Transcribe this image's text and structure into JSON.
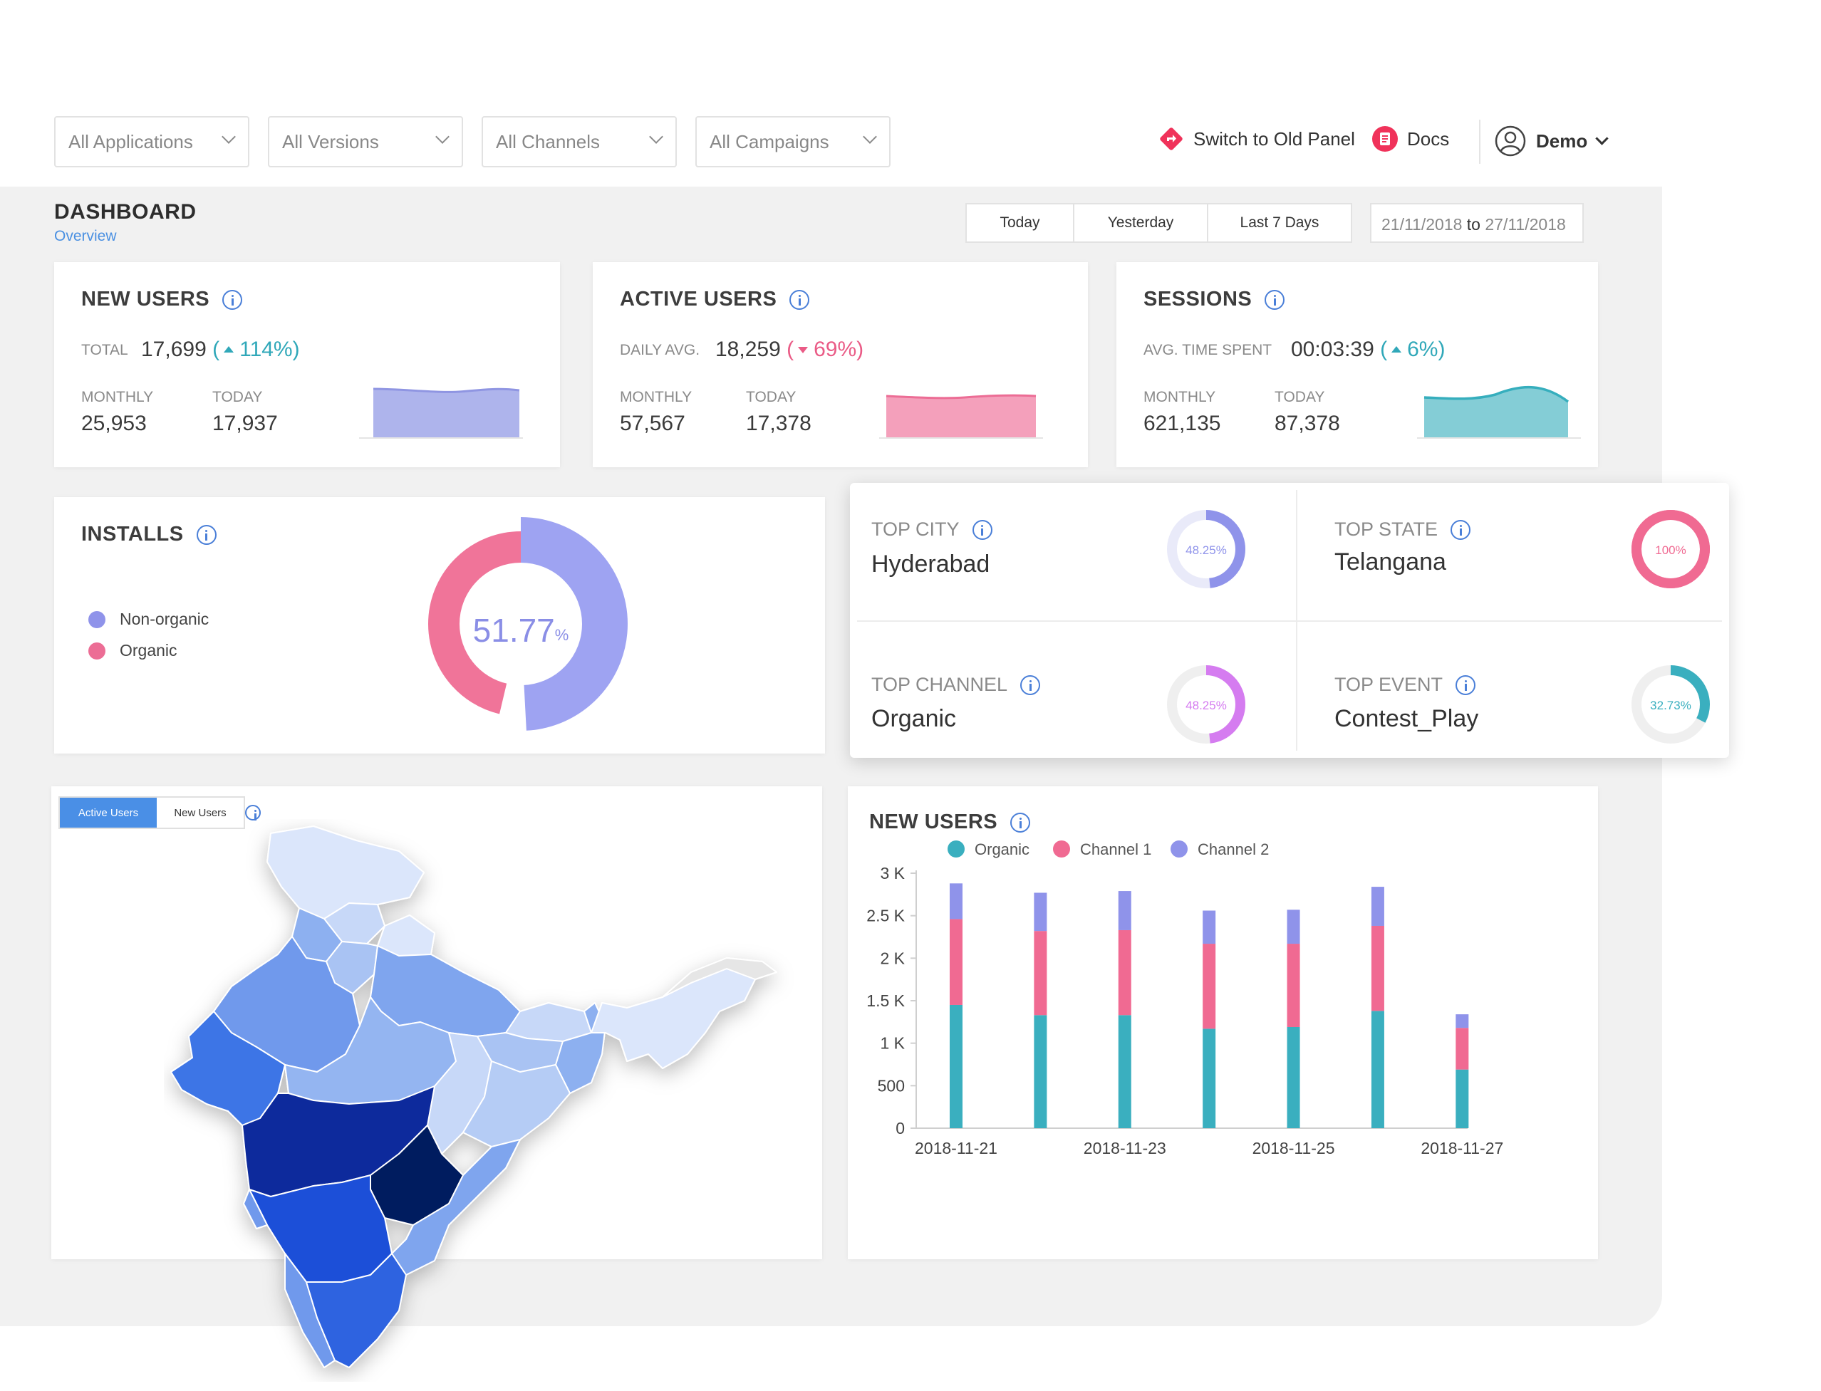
{
  "filters": [
    {
      "label": "All Applications"
    },
    {
      "label": "All Versions"
    },
    {
      "label": "All Channels"
    },
    {
      "label": "All Campaigns"
    }
  ],
  "topbar": {
    "switch_label": "Switch to Old Panel",
    "docs_label": "Docs",
    "user_name": "Demo"
  },
  "header": {
    "title": "DASHBOARD",
    "subtitle": "Overview",
    "ranges": [
      "Today",
      "Yesterday",
      "Last 7 Days"
    ],
    "date_from": "21/11/2018",
    "date_sep": "to",
    "date_to": "27/11/2018"
  },
  "stats": {
    "new_users": {
      "title": "NEW USERS",
      "main_label": "TOTAL",
      "main_value": "17,699",
      "change": "114%",
      "monthly_label": "MONTHLY",
      "monthly_value": "25,953",
      "today_label": "TODAY",
      "today_value": "17,937",
      "color": "#a9b1ec"
    },
    "active_users": {
      "title": "ACTIVE USERS",
      "main_label": "DAILY AVG.",
      "main_value": "18,259",
      "change": "69%",
      "monthly_label": "MONTHLY",
      "monthly_value": "57,567",
      "today_label": "TODAY",
      "today_value": "17,378",
      "color": "#f39bb8"
    },
    "sessions": {
      "title": "SESSIONS",
      "main_label": "AVG. TIME SPENT",
      "main_value": "00:03:39",
      "change": "6%",
      "monthly_label": "MONTHLY",
      "monthly_value": "621,135",
      "today_label": "TODAY",
      "today_value": "87,378",
      "color": "#7ecad3"
    }
  },
  "installs": {
    "title": "INSTALLS",
    "center_value": "51.77",
    "center_unit": "%",
    "legend": [
      {
        "name": "Non-organic",
        "color": "#9ea3f2",
        "share": 0.5177
      },
      {
        "name": "Organic",
        "color": "#f07499",
        "share": 0.4823
      }
    ]
  },
  "tops": [
    {
      "label": "TOP CITY",
      "value": "Hyderabad",
      "pct": "48.25%",
      "fraction": 0.4825,
      "color": "#8f93ea",
      "track": "#e9eaf9"
    },
    {
      "label": "TOP STATE",
      "value": "Telangana",
      "pct": "100%",
      "fraction": 1.0,
      "color": "#f06a92",
      "track": "#f06a92"
    },
    {
      "label": "TOP CHANNEL",
      "value": "Organic",
      "pct": "48.25%",
      "fraction": 0.4825,
      "color": "#d57cf0",
      "track": "#efefef"
    },
    {
      "label": "TOP EVENT",
      "value": "Contest_Play",
      "pct": "32.73%",
      "fraction": 0.3273,
      "color": "#3aafbf",
      "track": "#efefef"
    }
  ],
  "map_panel": {
    "tabs": [
      "Active Users",
      "New Users"
    ],
    "active_tab": "Active Users"
  },
  "chart_panel": {
    "title": "NEW USERS"
  },
  "chart_data": {
    "type": "bar",
    "stacked": true,
    "categories": [
      "2018-11-21",
      "2018-11-22",
      "2018-11-23",
      "2018-11-24",
      "2018-11-25",
      "2018-11-26",
      "2018-11-27"
    ],
    "x_tick_labels": [
      "2018-11-21",
      "",
      "2018-11-23",
      "",
      "2018-11-25",
      "",
      "2018-11-27"
    ],
    "series": [
      {
        "name": "Organic",
        "color": "#3aafbf",
        "values": [
          1450,
          1330,
          1330,
          1170,
          1190,
          1380,
          690
        ]
      },
      {
        "name": "Channel 1",
        "color": "#f06a92",
        "values": [
          1010,
          990,
          1000,
          1000,
          980,
          1000,
          490
        ]
      },
      {
        "name": "Channel 2",
        "color": "#8f93ea",
        "values": [
          420,
          450,
          460,
          390,
          400,
          460,
          160
        ]
      }
    ],
    "y_ticks": [
      "0",
      "500",
      "1 K",
      "1.5 K",
      "2 K",
      "2.5 K",
      "3 K"
    ],
    "ylim": [
      0,
      3000
    ],
    "legend_position": "top"
  }
}
